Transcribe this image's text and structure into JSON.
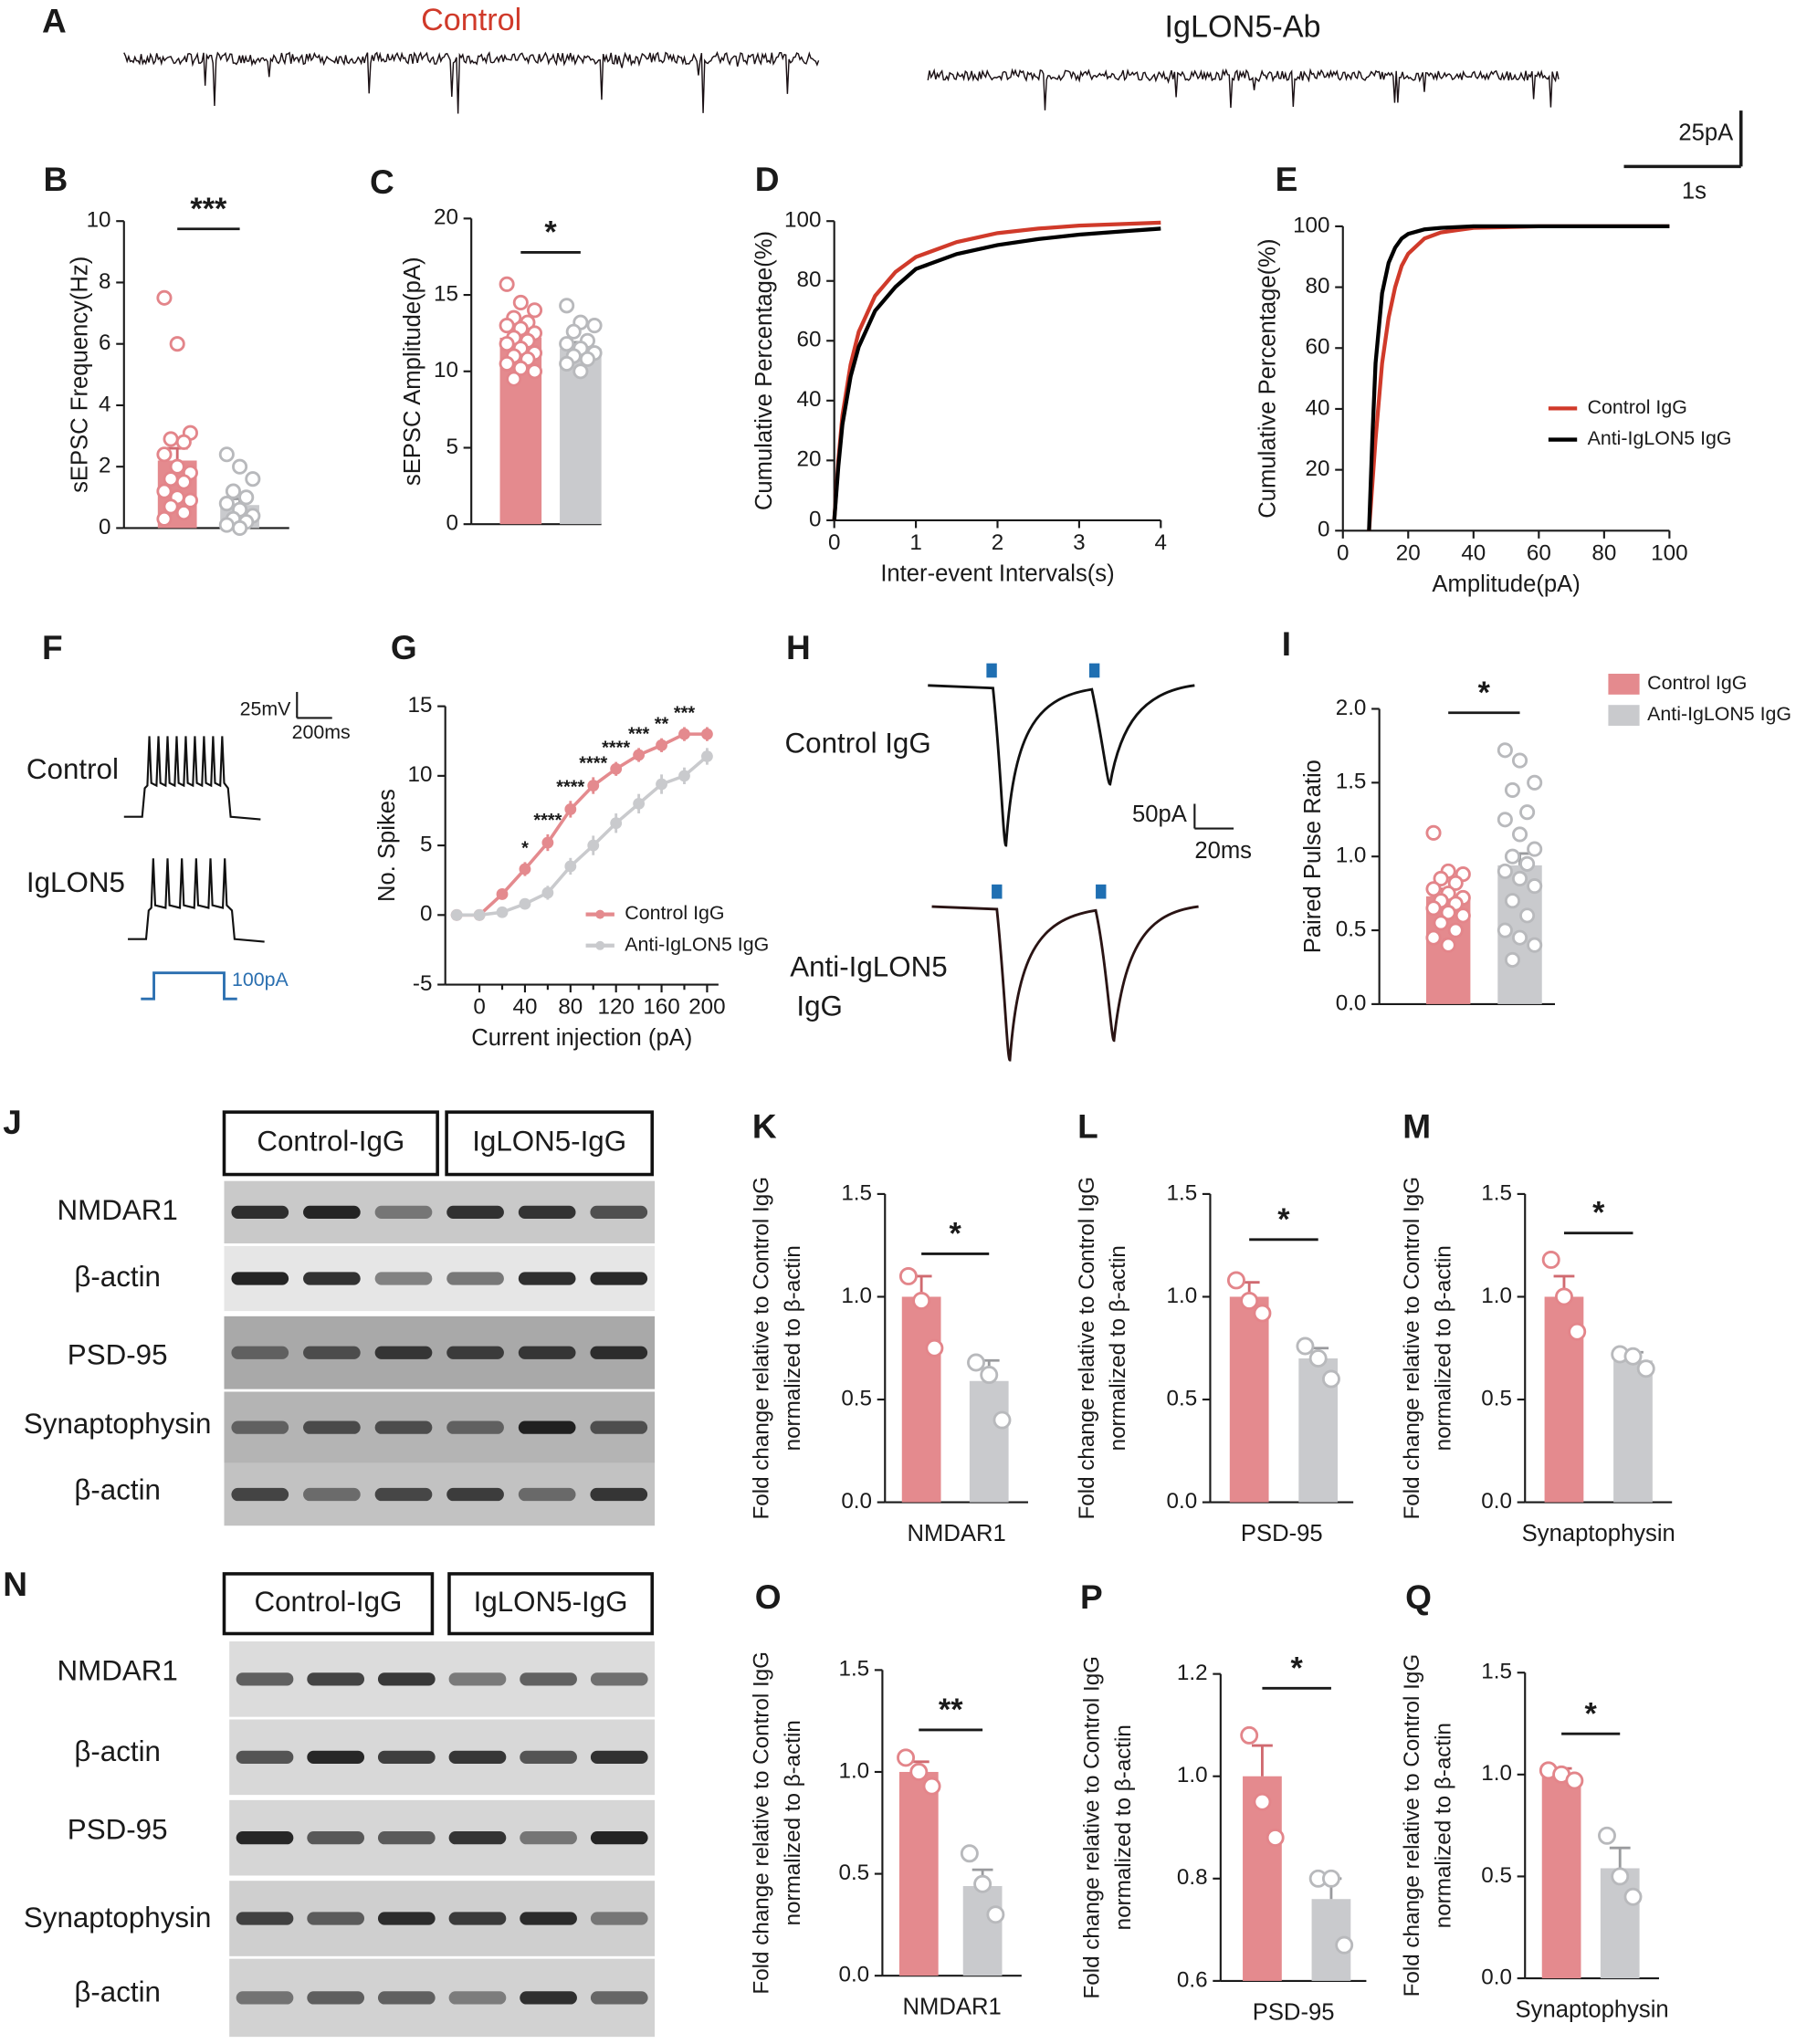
{
  "traces": {
    "A": {
      "panel": "A",
      "left": "Control",
      "right": "IgLON5-Ab",
      "scale_y": "25pA",
      "scale_x": "1s"
    },
    "F": {
      "panel": "F",
      "top": "Control",
      "bottom": "IgLON5",
      "scale_y": "25mV",
      "scale_x": "200ms",
      "step": "100pA"
    },
    "H": {
      "panel": "H",
      "top": "Control IgG",
      "bottom": [
        "Anti-IgLON5",
        "IgG"
      ],
      "scale_y": "50pA",
      "scale_x": "20ms"
    }
  },
  "blots": [
    {
      "panel": "J",
      "groups": [
        "Control-IgG",
        "IgLON5-IgG"
      ],
      "rows": [
        "NMDAR1",
        "β-actin",
        "PSD-95",
        "Synaptophysin",
        "β-actin"
      ]
    },
    {
      "panel": "N",
      "groups": [
        "Control-IgG",
        "IgLON5-IgG"
      ],
      "rows": [
        "NMDAR1",
        "β-actin",
        "PSD-95",
        "Synaptophysin",
        "β-actin"
      ]
    }
  ],
  "chart_data": [
    {
      "panel": "B",
      "type": "bar",
      "ylabel": "sEPSC Frequency(Hz)",
      "ylim": [
        0,
        10
      ],
      "yticks": [
        0,
        2,
        4,
        6,
        8,
        10
      ],
      "values": [
        2.2,
        0.75
      ],
      "errors": [
        0.4,
        0.2
      ],
      "colors": [
        "#e48a8e",
        "#c9cacd"
      ],
      "points": [
        [
          7.5,
          6.0,
          3.1,
          2.9,
          2.8,
          2.4,
          2.0,
          1.8,
          1.6,
          1.5,
          1.2,
          1.0,
          0.9,
          0.7,
          0.5,
          0.3
        ],
        [
          2.4,
          2.0,
          1.6,
          1.2,
          1.0,
          0.8,
          0.6,
          0.4,
          0.3,
          0.2,
          0.1,
          0.0
        ]
      ],
      "annotation": "***"
    },
    {
      "panel": "C",
      "type": "bar",
      "ylabel": "sEPSC Amplitude(pA)",
      "ylim": [
        0,
        20
      ],
      "yticks": [
        0,
        5,
        10,
        15,
        20
      ],
      "values": [
        12.2,
        11.5
      ],
      "errors": [
        0.4,
        0.4
      ],
      "colors": [
        "#e48a8e",
        "#c9cacd"
      ],
      "points": [
        [
          15.7,
          14.5,
          14,
          13.5,
          13.2,
          13,
          12.8,
          12.5,
          12.2,
          12,
          11.8,
          11.5,
          11.2,
          11,
          10.8,
          10.5,
          10.2,
          10,
          9.5
        ],
        [
          14.3,
          13.2,
          13,
          12.6,
          12,
          11.8,
          11.5,
          11.2,
          11,
          10.8,
          10.5,
          10
        ]
      ],
      "annotation": "*"
    },
    {
      "panel": "D",
      "type": "line",
      "xlabel": "Inter-event Intervals(s)",
      "ylabel": "Cumulative Percentage(%)",
      "xlim": [
        0,
        4
      ],
      "ylim": [
        0,
        100
      ],
      "xticks": [
        0,
        1,
        2,
        3,
        4
      ],
      "yticks": [
        0,
        20,
        40,
        60,
        80,
        100
      ],
      "x": [
        0,
        0.05,
        0.1,
        0.2,
        0.3,
        0.5,
        0.75,
        1,
        1.5,
        2,
        2.5,
        3,
        3.5,
        4
      ],
      "series": [
        {
          "color": "#d03a2a",
          "values": [
            0,
            20,
            35,
            52,
            63,
            75,
            83,
            88,
            93,
            96,
            97.5,
            98.5,
            99,
            99.5
          ]
        },
        {
          "color": "#000000",
          "values": [
            0,
            18,
            32,
            48,
            58,
            70,
            78,
            84,
            89,
            92,
            94,
            95.5,
            96.5,
            97.5
          ]
        }
      ]
    },
    {
      "panel": "E",
      "type": "line",
      "xlabel": "Amplitude(pA)",
      "ylabel": "Cumulative Percentage(%)",
      "xlim": [
        0,
        100
      ],
      "ylim": [
        0,
        100
      ],
      "xticks": [
        0,
        20,
        40,
        60,
        80,
        100
      ],
      "yticks": [
        0,
        20,
        40,
        60,
        80,
        100
      ],
      "x": [
        8,
        9,
        10,
        12,
        14,
        16,
        18,
        20,
        25,
        30,
        40,
        60,
        100
      ],
      "series": [
        {
          "name": "Control IgG",
          "color": "#d03a2a",
          "values": [
            0,
            15,
            30,
            55,
            70,
            80,
            87,
            91,
            96,
            98,
            99.5,
            100,
            100
          ]
        },
        {
          "name": "Anti-IgLON5 IgG",
          "color": "#000000",
          "values": [
            0,
            30,
            55,
            78,
            88,
            93,
            96,
            97.5,
            99,
            99.5,
            100,
            100,
            100
          ]
        }
      ]
    },
    {
      "panel": "G",
      "type": "line",
      "xlabel": "Current injection (pA)",
      "ylabel": "No. Spikes",
      "xlim": [
        -30,
        210
      ],
      "ylim": [
        -5,
        15
      ],
      "xticks": [
        0,
        40,
        80,
        120,
        160,
        200
      ],
      "x2ticks": [
        20,
        60,
        100,
        140,
        180
      ],
      "yticks": [
        -5,
        0,
        5,
        10,
        15
      ],
      "x": [
        -20,
        0,
        20,
        40,
        60,
        80,
        100,
        120,
        140,
        160,
        180,
        200
      ],
      "series": [
        {
          "name": "Control IgG",
          "color": "#e48a8e",
          "values": [
            0,
            0,
            1.5,
            3.3,
            5.2,
            7.6,
            9.3,
            10.5,
            11.5,
            12.2,
            13,
            13
          ],
          "errors": [
            0,
            0,
            0.3,
            0.5,
            0.6,
            0.6,
            0.6,
            0.5,
            0.5,
            0.5,
            0.5,
            0.5
          ]
        },
        {
          "name": "Anti-IgLON5 IgG",
          "color": "#c9cacd",
          "values": [
            0,
            0,
            0.2,
            0.8,
            1.6,
            3.5,
            5,
            6.6,
            8,
            9.4,
            10,
            11.4
          ],
          "errors": [
            0,
            0,
            0.2,
            0.3,
            0.5,
            0.6,
            0.7,
            0.7,
            0.7,
            0.7,
            0.6,
            0.6
          ]
        }
      ],
      "annotations": [
        {
          "x": 40,
          "label": "*"
        },
        {
          "x": 60,
          "label": "****"
        },
        {
          "x": 80,
          "label": "****"
        },
        {
          "x": 100,
          "label": "****"
        },
        {
          "x": 120,
          "label": "****"
        },
        {
          "x": 140,
          "label": "***"
        },
        {
          "x": 160,
          "label": "**"
        },
        {
          "x": 180,
          "label": "***"
        }
      ]
    },
    {
      "panel": "I",
      "type": "bar",
      "ylabel": "Paired Pulse Ratio",
      "ylim": [
        0,
        2
      ],
      "yticks": [
        {
          "value": 0,
          "label": "0.0"
        },
        0.5,
        {
          "value": 1,
          "label": "1.0"
        },
        1.5,
        {
          "value": 2,
          "label": "2.0"
        }
      ],
      "values": [
        0.73,
        0.94
      ],
      "errors": [
        0.05,
        0.08
      ],
      "colors": [
        "#e48a8e",
        "#c9cacd"
      ],
      "points": [
        [
          1.16,
          0.9,
          0.88,
          0.85,
          0.82,
          0.78,
          0.75,
          0.72,
          0.7,
          0.68,
          0.65,
          0.62,
          0.6,
          0.55,
          0.5,
          0.45,
          0.4
        ],
        [
          1.72,
          1.65,
          1.5,
          1.45,
          1.3,
          1.25,
          1.15,
          1.05,
          1.0,
          0.95,
          0.9,
          0.85,
          0.8,
          0.7,
          0.6,
          0.5,
          0.45,
          0.4,
          0.3
        ]
      ],
      "annotation": "*",
      "legend": [
        "Control IgG",
        "Anti-IgLON5 IgG"
      ]
    },
    {
      "panel": "K",
      "type": "bar",
      "ylabel": [
        "Fold change relative to Control IgG",
        "normalized to β-actin"
      ],
      "xlabel": "NMDAR1",
      "ylim": [
        0,
        1.5
      ],
      "yticks": [
        {
          "value": 0,
          "label": "0.0"
        },
        0.5,
        {
          "value": 1,
          "label": "1.0"
        },
        1.5
      ],
      "values": [
        1.0,
        0.59
      ],
      "errors": [
        0.1,
        0.1
      ],
      "colors": [
        "#e48a8e",
        "#c9cacd"
      ],
      "points": [
        [
          1.1,
          0.98,
          0.75
        ],
        [
          0.68,
          0.62,
          0.4
        ]
      ],
      "annotation": "*"
    },
    {
      "panel": "L",
      "type": "bar",
      "ylabel": [
        "Fold change relative to Control IgG",
        "normalized to β-actin"
      ],
      "xlabel": "PSD-95",
      "ylim": [
        0,
        1.5
      ],
      "yticks": [
        {
          "value": 0,
          "label": "0.0"
        },
        0.5,
        {
          "value": 1,
          "label": "1.0"
        },
        1.5
      ],
      "values": [
        1.0,
        0.7
      ],
      "errors": [
        0.07,
        0.05
      ],
      "colors": [
        "#e48a8e",
        "#c9cacd"
      ],
      "points": [
        [
          1.08,
          0.98,
          0.92
        ],
        [
          0.76,
          0.7,
          0.6
        ]
      ],
      "annotation": "*"
    },
    {
      "panel": "M",
      "type": "bar",
      "ylabel": [
        "Fold change relative to Control IgG",
        "normalized to β-actin"
      ],
      "xlabel": "Synaptophysin",
      "ylim": [
        0,
        1.5
      ],
      "yticks": [
        {
          "value": 0,
          "label": "0.0"
        },
        0.5,
        {
          "value": 1,
          "label": "1.0"
        },
        1.5
      ],
      "values": [
        1.0,
        0.69
      ],
      "errors": [
        0.1,
        0.04
      ],
      "colors": [
        "#e48a8e",
        "#c9cacd"
      ],
      "points": [
        [
          1.18,
          1.0,
          0.83
        ],
        [
          0.72,
          0.71,
          0.65
        ]
      ],
      "annotation": "*"
    },
    {
      "panel": "O",
      "type": "bar",
      "ylabel": [
        "Fold change relative to Control IgG",
        "normalized to β-actin"
      ],
      "xlabel": "NMDAR1",
      "ylim": [
        0,
        1.5
      ],
      "yticks": [
        {
          "value": 0,
          "label": "0.0"
        },
        0.5,
        {
          "value": 1,
          "label": "1.0"
        },
        1.5
      ],
      "values": [
        1.0,
        0.44
      ],
      "errors": [
        0.05,
        0.08
      ],
      "colors": [
        "#e48a8e",
        "#c9cacd"
      ],
      "points": [
        [
          1.07,
          1.0,
          0.93
        ],
        [
          0.6,
          0.45,
          0.3
        ]
      ],
      "annotation": "**"
    },
    {
      "panel": "P",
      "type": "bar",
      "ylabel": [
        "Fold change relative to Control IgG",
        "normalized to β-actin"
      ],
      "xlabel": "PSD-95",
      "ylim": [
        0.6,
        1.2
      ],
      "yticks": [
        0.6,
        0.8,
        {
          "value": 1,
          "label": "1.0"
        },
        1.2
      ],
      "values": [
        1.0,
        0.76
      ],
      "errors": [
        0.06,
        0.04
      ],
      "colors": [
        "#e48a8e",
        "#c9cacd"
      ],
      "points": [
        [
          1.08,
          0.95,
          0.88
        ],
        [
          0.8,
          0.8,
          0.67
        ]
      ],
      "annotation": "*"
    },
    {
      "panel": "Q",
      "type": "bar",
      "ylabel": [
        "Fold change relative to Control IgG",
        "normalized to β-actin"
      ],
      "xlabel": "Synaptophysin",
      "ylim": [
        0,
        1.5
      ],
      "yticks": [
        {
          "value": 0,
          "label": "0.0"
        },
        0.5,
        {
          "value": 1,
          "label": "1.0"
        },
        1.5
      ],
      "values": [
        1.0,
        0.54
      ],
      "errors": [
        0.03,
        0.1
      ],
      "colors": [
        "#e48a8e",
        "#c9cacd"
      ],
      "points": [
        [
          1.02,
          1.0,
          0.97
        ],
        [
          0.7,
          0.5,
          0.4
        ]
      ],
      "annotation": "*"
    }
  ]
}
